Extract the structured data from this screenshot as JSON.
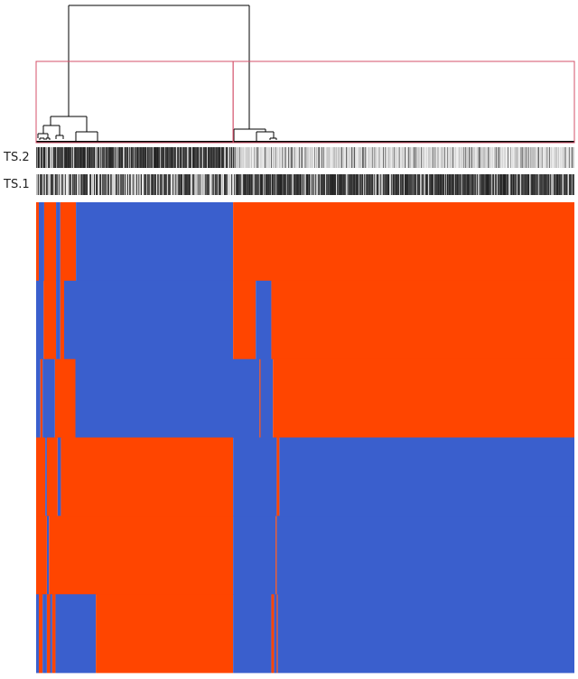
{
  "figure": {
    "track_labels": [
      "TS.2",
      "TS.1"
    ]
  },
  "colors": {
    "orange": "#ff4500",
    "blue": "#3a5fcd",
    "dendrogram_line": "#000000",
    "cluster_box": "#d4506a",
    "track_dark": "#222222",
    "track_light": "#d0d0d0"
  },
  "heatmap": {
    "description_rows": 6,
    "row_bands": [
      {
        "segments": [
          [
            "O",
            0.0,
            0.005
          ],
          [
            "B",
            0.005,
            0.015
          ],
          [
            "O",
            0.015,
            0.037
          ],
          [
            "B",
            0.037,
            0.045
          ],
          [
            "O",
            0.045,
            0.074
          ],
          [
            "B",
            0.074,
            0.366
          ],
          [
            "O",
            0.366,
            1.0
          ]
        ]
      },
      {
        "segments": [
          [
            "B",
            0.0,
            0.014
          ],
          [
            "O",
            0.014,
            0.037
          ],
          [
            "B",
            0.037,
            0.045
          ],
          [
            "O",
            0.045,
            0.052
          ],
          [
            "B",
            0.052,
            0.366
          ],
          [
            "O",
            0.366,
            0.408
          ],
          [
            "B",
            0.408,
            0.437
          ],
          [
            "O",
            0.437,
            1.0
          ]
        ]
      },
      {
        "segments": [
          [
            "B",
            0.0,
            0.008
          ],
          [
            "O",
            0.008,
            0.012
          ],
          [
            "B",
            0.012,
            0.035
          ],
          [
            "O",
            0.035,
            0.073
          ],
          [
            "B",
            0.073,
            0.415
          ],
          [
            "O",
            0.415,
            0.417
          ],
          [
            "B",
            0.417,
            0.44
          ],
          [
            "O",
            0.44,
            1.0
          ]
        ]
      },
      {
        "segments": [
          [
            "O",
            0.0,
            0.017
          ],
          [
            "B",
            0.017,
            0.02
          ],
          [
            "O",
            0.02,
            0.04
          ],
          [
            "B",
            0.04,
            0.046
          ],
          [
            "O",
            0.046,
            0.366
          ],
          [
            "B",
            0.366,
            0.447
          ],
          [
            "O",
            0.447,
            0.452
          ],
          [
            "B",
            0.452,
            1.0
          ]
        ]
      },
      {
        "segments": [
          [
            "O",
            0.0,
            0.02
          ],
          [
            "B",
            0.02,
            0.024
          ],
          [
            "O",
            0.024,
            0.366
          ],
          [
            "B",
            0.366,
            0.445
          ],
          [
            "O",
            0.445,
            0.447
          ],
          [
            "B",
            0.447,
            1.0
          ]
        ]
      },
      {
        "segments": [
          [
            "B",
            0.0,
            0.005
          ],
          [
            "O",
            0.005,
            0.012
          ],
          [
            "B",
            0.012,
            0.02
          ],
          [
            "O",
            0.02,
            0.026
          ],
          [
            "B",
            0.026,
            0.03
          ],
          [
            "O",
            0.03,
            0.036
          ],
          [
            "B",
            0.036,
            0.111
          ],
          [
            "O",
            0.111,
            0.366
          ],
          [
            "B",
            0.366,
            0.437
          ],
          [
            "O",
            0.437,
            0.442
          ],
          [
            "B",
            0.442,
            0.447
          ],
          [
            "O",
            0.447,
            0.449
          ],
          [
            "B",
            0.449,
            1.0
          ]
        ]
      }
    ]
  },
  "tracks": {
    "TS.2": {
      "split": 0.366,
      "left_tone": "dark",
      "right_tone": "light"
    },
    "TS.1": {
      "split": 0.366,
      "left_tone": "mixed",
      "right_tone": "dark"
    }
  }
}
